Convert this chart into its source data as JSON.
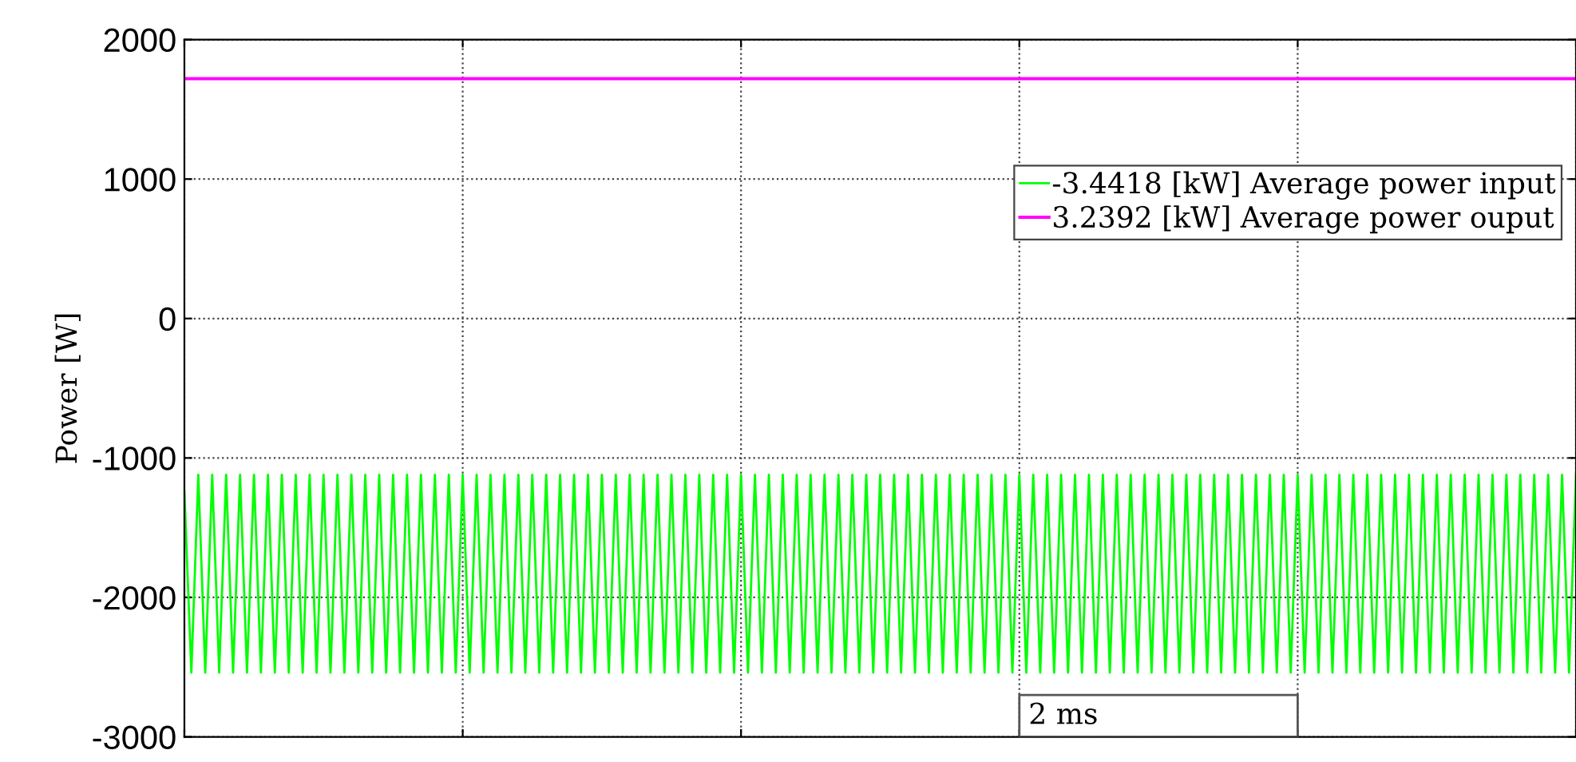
{
  "chart_data": {
    "type": "line",
    "ylabel": "Power [W]",
    "categories": [
      null,
      null,
      null,
      null,
      null,
      null,
      null,
      null,
      null,
      null,
      null,
      null,
      null,
      null,
      null,
      null,
      null,
      null,
      null,
      null,
      null,
      null,
      null,
      null,
      null,
      null,
      null,
      null,
      null,
      null,
      null,
      null,
      null,
      null,
      null,
      null,
      null,
      null,
      null,
      null,
      null,
      null,
      null,
      null,
      null,
      null,
      null,
      null,
      null,
      null,
      null,
      null,
      null,
      null,
      null,
      null,
      null,
      null,
      null,
      null,
      null,
      null,
      null,
      null,
      null,
      null,
      null,
      null,
      null,
      null,
      null,
      null,
      null,
      null,
      null,
      null,
      null,
      null,
      null,
      null,
      null,
      null,
      null,
      null,
      null,
      null,
      null,
      null,
      null,
      null,
      null,
      null,
      null,
      null,
      null,
      null,
      null,
      null,
      null,
      null,
      null,
      null,
      null,
      null,
      null,
      null,
      null,
      null,
      null,
      null,
      null,
      null,
      null,
      null,
      null,
      null,
      null,
      null,
      null,
      null,
      null,
      null,
      null,
      null,
      null,
      null,
      null,
      null,
      null,
      null,
      null,
      null,
      null,
      null,
      null,
      null,
      null,
      null,
      null,
      null,
      null,
      null,
      null,
      null,
      null,
      null,
      null,
      null,
      null,
      null,
      null,
      null,
      null,
      null,
      null,
      null,
      null,
      null,
      null,
      null,
      null,
      null,
      null,
      null,
      null,
      null,
      null,
      null,
      null,
      null,
      null,
      null,
      null,
      null,
      null,
      null,
      null,
      null,
      null,
      null,
      null,
      null,
      null,
      null,
      null,
      null,
      null,
      null,
      null,
      null,
      null,
      null,
      null,
      null,
      null,
      null,
      null,
      null,
      null,
      null,
      null
    ],
    "ylim": [
      -3000,
      2000
    ],
    "yticks": [
      -3000,
      -2000,
      -1000,
      0,
      1000,
      2000
    ],
    "grid": true,
    "legend": "top right",
    "tick_labels": "y",
    "annotations": [
      "2 ms"
    ],
    "series": [
      {
        "name": "-3.4418 [kW] Average power input",
        "color": "#00ff00",
        "values": [
          -1240,
          -2540,
          -1120,
          -2540,
          -1120,
          -2540,
          -1120,
          -2540,
          -1120,
          -2540,
          -1120,
          -2540,
          -1120,
          -2540,
          -1120,
          -2540,
          -1120,
          -2540,
          -1120,
          -2540,
          -1120,
          -2540,
          -1120,
          -2540,
          -1120,
          -2540,
          -1120,
          -2540,
          -1120,
          -2540,
          -1120,
          -2540,
          -1120,
          -2540,
          -1120,
          -2540,
          -1120,
          -2540,
          -1120,
          -2540,
          -1120,
          -2540,
          -1120,
          -2540,
          -1120,
          -2540,
          -1120,
          -2540,
          -1120,
          -2540,
          -1120,
          -2540,
          -1120,
          -2540,
          -1120,
          -2540,
          -1120,
          -2540,
          -1120,
          -2540,
          -1120,
          -2540,
          -1120,
          -2540,
          -1120,
          -2540,
          -1120,
          -2540,
          -1120,
          -2540,
          -1120,
          -2540,
          -1120,
          -2540,
          -1120,
          -2540,
          -1120,
          -2540,
          -1120,
          -2540,
          -1120,
          -2540,
          -1120,
          -2540,
          -1120,
          -2540,
          -1120,
          -2540,
          -1120,
          -2540,
          -1120,
          -2540,
          -1120,
          -2540,
          -1120,
          -2540,
          -1120,
          -2540,
          -1120,
          -2540,
          -1120,
          -2540,
          -1120,
          -2540,
          -1120,
          -2540,
          -1120,
          -2540,
          -1120,
          -2540,
          -1120,
          -2540,
          -1120,
          -2540,
          -1120,
          -2540,
          -1120,
          -2540,
          -1120,
          -2540,
          -1120,
          -2540,
          -1120,
          -2540,
          -1120,
          -2540,
          -1120,
          -2540,
          -1120,
          -2540,
          -1120,
          -2540,
          -1120,
          -2540,
          -1120,
          -2540,
          -1120,
          -2540,
          -1120,
          -2540,
          -1120,
          -2540,
          -1120,
          -2540,
          -1120,
          -2540,
          -1120,
          -2540,
          -1120,
          -2540,
          -1120,
          -2540,
          -1120,
          -2540,
          -1120,
          -2540,
          -1120,
          -2540,
          -1120,
          -2540,
          -1120,
          -2540,
          -1120,
          -2540,
          -1120,
          -2540,
          -1120,
          -2540,
          -1120,
          -2540,
          -1120,
          -2540,
          -1120,
          -2540,
          -1120,
          -2540,
          -1120,
          -2540,
          -1120,
          -2540,
          -1120,
          -2540,
          -1120,
          -2540,
          -1120,
          -2540,
          -1120,
          -2540,
          -1120,
          -2540,
          -1120,
          -2540,
          -1120,
          -2540,
          -1120,
          -2540,
          -1120,
          -2540,
          -1120,
          -2540,
          -1120
        ]
      },
      {
        "name": "3.2392 [kW] Average power ouput",
        "color": "#ff00ff",
        "values": [
          1720,
          1720,
          1720,
          1720,
          1720,
          1720,
          1720,
          1720,
          1720,
          1720,
          1720,
          1720,
          1720,
          1720,
          1720,
          1720,
          1720,
          1720,
          1720,
          1720,
          1720,
          1720,
          1720,
          1720,
          1720,
          1720,
          1720,
          1720,
          1720,
          1720,
          1720,
          1720,
          1720,
          1720,
          1720,
          1720,
          1720,
          1720,
          1720,
          1720,
          1720,
          1720,
          1720,
          1720,
          1720,
          1720,
          1720,
          1720,
          1720,
          1720,
          1720,
          1720,
          1720,
          1720,
          1720,
          1720,
          1720,
          1720,
          1720,
          1720,
          1720,
          1720,
          1720,
          1720,
          1720,
          1720,
          1720,
          1720,
          1720,
          1720,
          1720,
          1720,
          1720,
          1720,
          1720,
          1720,
          1720,
          1720,
          1720,
          1720,
          1720,
          1720,
          1720,
          1720,
          1720,
          1720,
          1720,
          1720,
          1720,
          1720,
          1720,
          1720,
          1720,
          1720,
          1720,
          1720,
          1720,
          1720,
          1720,
          1720,
          1720,
          1720,
          1720,
          1720,
          1720,
          1720,
          1720,
          1720,
          1720,
          1720,
          1720,
          1720,
          1720,
          1720,
          1720,
          1720,
          1720,
          1720,
          1720,
          1720,
          1720,
          1720,
          1720,
          1720,
          1720,
          1720,
          1720,
          1720,
          1720,
          1720,
          1720,
          1720,
          1720,
          1720,
          1720,
          1720,
          1720,
          1720,
          1720,
          1720,
          1720,
          1720,
          1720,
          1720,
          1720,
          1720,
          1720,
          1720,
          1720,
          1720,
          1720,
          1720,
          1720,
          1720,
          1720,
          1720,
          1720,
          1720,
          1720,
          1720,
          1720,
          1720,
          1720,
          1720,
          1720,
          1720,
          1720,
          1720,
          1720,
          1720,
          1720,
          1720,
          1720,
          1720,
          1720,
          1720,
          1720,
          1720,
          1720,
          1720,
          1720,
          1720,
          1720,
          1720,
          1720,
          1720,
          1720,
          1720,
          1720,
          1720,
          1720,
          1720,
          1720,
          1720,
          1720,
          1720,
          1720,
          1720,
          1720,
          1720,
          1720
        ]
      }
    ]
  }
}
